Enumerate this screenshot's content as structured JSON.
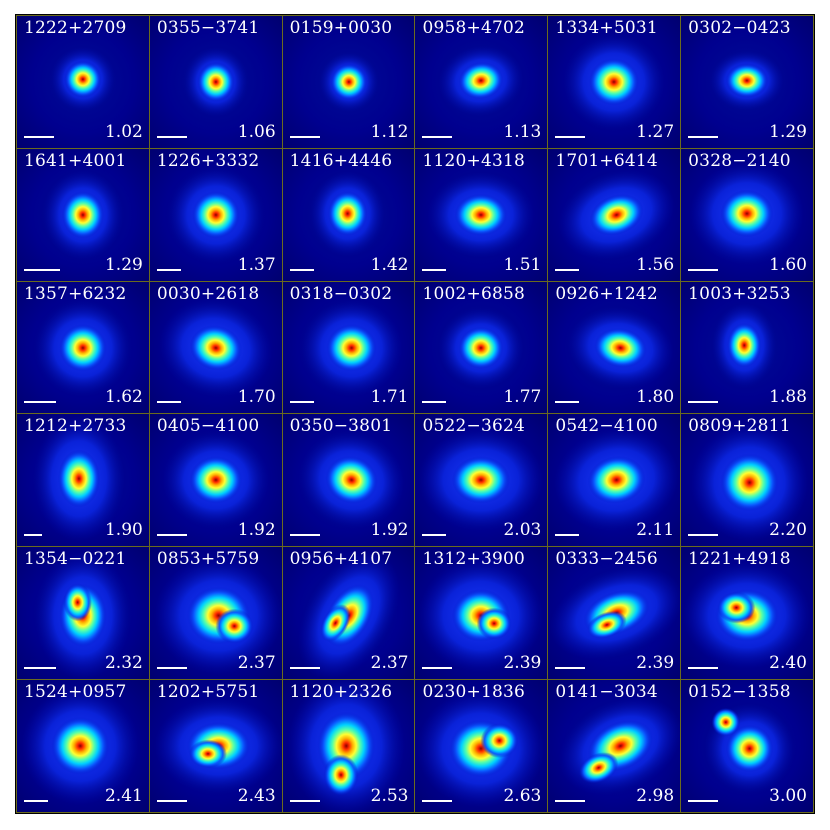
{
  "panels": [
    {
      "name": "1222+2709",
      "value": "1.02"
    },
    {
      "name": "0355−3741",
      "value": "1.06"
    },
    {
      "name": "0159+0030",
      "value": "1.12"
    },
    {
      "name": "0958+4702",
      "value": "1.13"
    },
    {
      "name": "1334+5031",
      "value": "1.27"
    },
    {
      "name": "0302−0423",
      "value": "1.29"
    },
    {
      "name": "1641+4001",
      "value": "1.29"
    },
    {
      "name": "1226+3332",
      "value": "1.37"
    },
    {
      "name": "1416+4446",
      "value": "1.42"
    },
    {
      "name": "1120+4318",
      "value": "1.51"
    },
    {
      "name": "1701+6414",
      "value": "1.56"
    },
    {
      "name": "0328−2140",
      "value": "1.60"
    },
    {
      "name": "1357+6232",
      "value": "1.62"
    },
    {
      "name": "0030+2618",
      "value": "1.70"
    },
    {
      "name": "0318−0302",
      "value": "1.71"
    },
    {
      "name": "1002+6858",
      "value": "1.77"
    },
    {
      "name": "0926+1242",
      "value": "1.80"
    },
    {
      "name": "1003+3253",
      "value": "1.88"
    },
    {
      "name": "1212+2733",
      "value": "1.90"
    },
    {
      "name": "0405−4100",
      "value": "1.92"
    },
    {
      "name": "0350−3801",
      "value": "1.92"
    },
    {
      "name": "0522−3624",
      "value": "2.03"
    },
    {
      "name": "0542−4100",
      "value": "2.11"
    },
    {
      "name": "0809+2811",
      "value": "2.20"
    },
    {
      "name": "1354−0221",
      "value": "2.32"
    },
    {
      "name": "0853+5759",
      "value": "2.37"
    },
    {
      "name": "0956+4107",
      "value": "2.37"
    },
    {
      "name": "1312+3900",
      "value": "2.39"
    },
    {
      "name": "0333−2456",
      "value": "2.39"
    },
    {
      "name": "1221+4918",
      "value": "2.40"
    },
    {
      "name": "1524+0957",
      "value": "2.41"
    },
    {
      "name": "1202+5751",
      "value": "2.43"
    },
    {
      "name": "1120+2326",
      "value": "2.53"
    },
    {
      "name": "0230+1836",
      "value": "2.63"
    },
    {
      "name": "0141−3034",
      "value": "2.98"
    },
    {
      "name": "0152−1358",
      "value": "3.00"
    }
  ]
}
